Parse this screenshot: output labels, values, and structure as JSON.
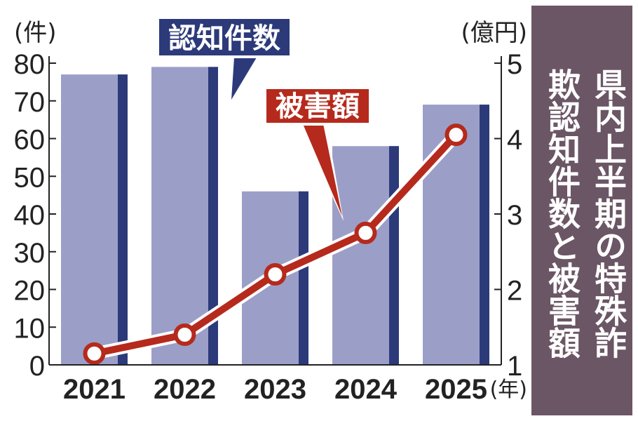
{
  "chart_data": {
    "type": "bar",
    "title": "県内上半期の特殊詐欺認知件数と被害額",
    "categories": [
      "2021",
      "2022",
      "2023",
      "2024",
      "2025"
    ],
    "x_unit": "(年)",
    "y_left": {
      "unit": "(件)",
      "range": [
        0,
        80
      ],
      "ticks": [
        0,
        10,
        20,
        30,
        40,
        50,
        60,
        70,
        80
      ]
    },
    "y_right": {
      "unit": "(億円)",
      "range": [
        1,
        5
      ],
      "ticks": [
        1,
        2,
        3,
        4,
        5
      ]
    },
    "series": [
      {
        "name": "認知件数",
        "type": "bar",
        "axis": "left",
        "values": [
          77,
          79,
          46,
          58,
          69
        ],
        "color": "#9b9fc8",
        "edge_color": "#2c3a7a"
      },
      {
        "name": "被害額",
        "type": "line",
        "axis": "right",
        "values": [
          1.15,
          1.4,
          2.2,
          2.75,
          4.05
        ],
        "color": "#b52a1c"
      }
    ],
    "grid": false,
    "legend": "callout-labels"
  }
}
